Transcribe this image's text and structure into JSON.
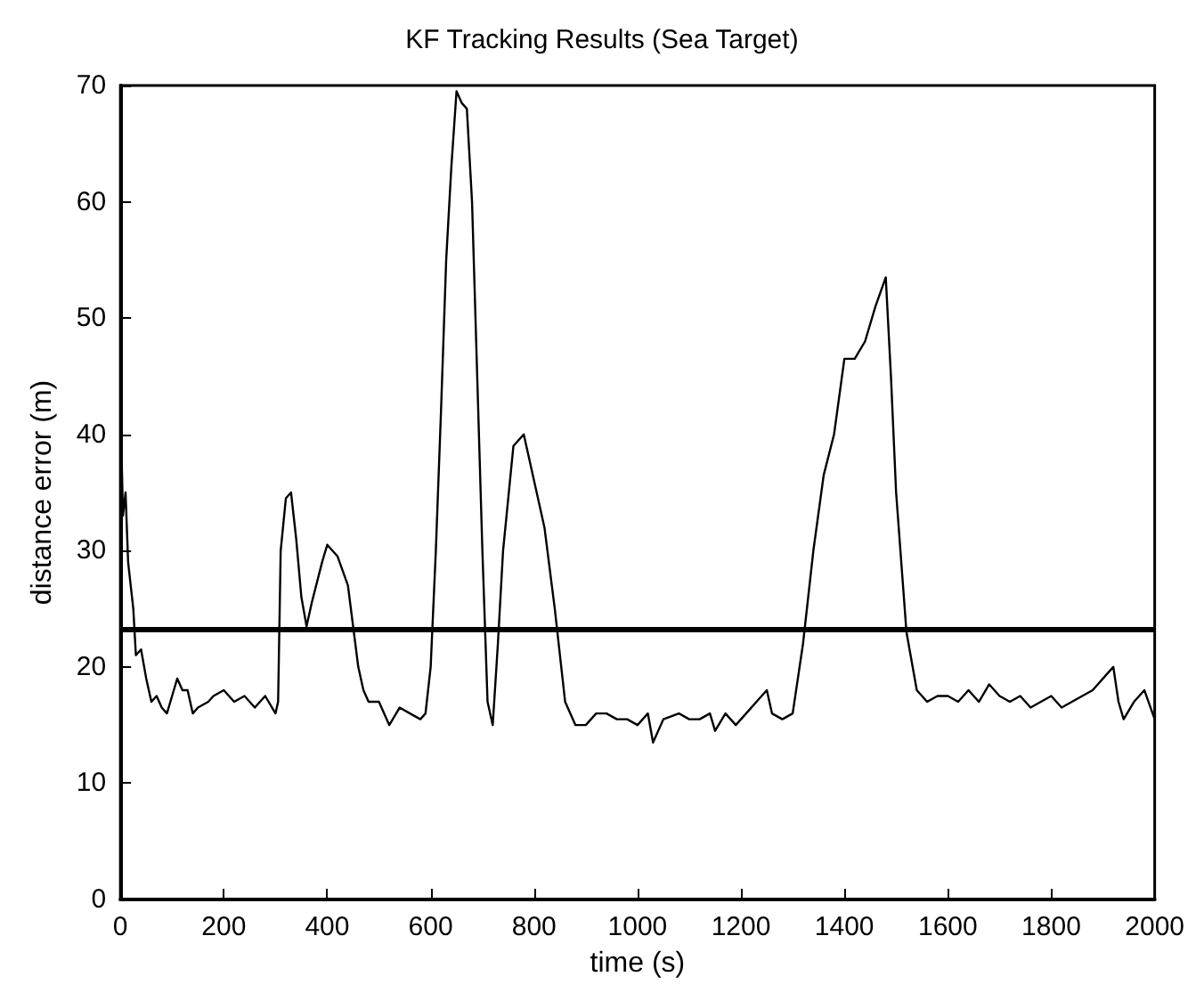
{
  "chart_data": {
    "type": "line",
    "title": "KF Tracking Results (Sea Target)",
    "xlabel": "time (s)",
    "ylabel": "distance error (m)",
    "x": [
      0,
      5,
      10,
      15,
      25,
      30,
      40,
      50,
      60,
      70,
      80,
      90,
      100,
      110,
      120,
      130,
      140,
      150,
      170,
      180,
      200,
      220,
      240,
      260,
      280,
      300,
      305,
      310,
      320,
      330,
      340,
      350,
      360,
      370,
      390,
      400,
      410,
      420,
      440,
      460,
      470,
      480,
      500,
      520,
      540,
      560,
      580,
      590,
      600,
      610,
      620,
      630,
      640,
      650,
      660,
      670,
      680,
      690,
      700,
      710,
      720,
      730,
      740,
      760,
      770,
      780,
      790,
      800,
      820,
      840,
      860,
      880,
      900,
      920,
      940,
      960,
      980,
      1000,
      1020,
      1030,
      1050,
      1080,
      1100,
      1120,
      1140,
      1150,
      1170,
      1190,
      1210,
      1230,
      1250,
      1260,
      1280,
      1300,
      1320,
      1340,
      1360,
      1380,
      1400,
      1420,
      1440,
      1460,
      1480,
      1490,
      1500,
      1520,
      1540,
      1560,
      1580,
      1600,
      1620,
      1640,
      1660,
      1680,
      1700,
      1720,
      1740,
      1760,
      1780,
      1800,
      1820,
      1840,
      1860,
      1880,
      1900,
      1920,
      1930,
      1940,
      1960,
      1980,
      2000
    ],
    "series": [
      {
        "color": "#000000",
        "values": [
          43,
          33,
          35,
          29,
          25,
          21,
          21.5,
          19,
          17,
          17.5,
          16.5,
          16,
          17.5,
          19,
          18,
          18,
          16,
          16.5,
          17,
          17.5,
          18,
          17,
          17.5,
          16.5,
          17.5,
          16,
          17,
          30,
          34.5,
          35,
          31,
          26,
          23.5,
          25.5,
          29,
          30.5,
          30,
          29.5,
          27,
          20,
          18,
          17,
          17,
          15,
          16.5,
          16,
          15.5,
          16,
          20,
          30,
          42,
          55,
          63,
          69.5,
          68.5,
          68,
          60,
          45,
          30,
          17,
          15,
          22,
          30,
          39,
          39.5,
          40,
          38,
          36,
          32,
          25,
          17,
          15,
          15,
          16,
          16,
          15.5,
          15.5,
          15,
          16,
          13.5,
          15.5,
          16,
          15.5,
          15.5,
          16,
          14.5,
          16,
          15,
          16,
          17,
          18,
          16,
          15.5,
          16,
          22,
          30,
          36.5,
          40,
          46.5,
          46.5,
          48,
          51,
          53.5,
          45,
          35,
          23,
          18,
          17,
          17.5,
          17.5,
          17,
          18,
          17,
          18.5,
          17.5,
          17,
          17.5,
          16.5,
          17,
          17.5,
          16.5,
          17,
          17.5,
          18,
          19,
          20,
          17,
          15.5,
          17,
          18,
          15.5
        ]
      }
    ],
    "ref_lines": [
      {
        "axis": "y",
        "value": 23.3,
        "color": "#000000"
      }
    ],
    "xlim": [
      0,
      2000
    ],
    "xticks": [
      0,
      200,
      400,
      600,
      800,
      1000,
      1200,
      1400,
      1600,
      1800,
      2000
    ],
    "ylim": [
      0,
      70
    ],
    "yticks": [
      0,
      10,
      20,
      30,
      40,
      50,
      60,
      70
    ],
    "grid": false,
    "marker": "none",
    "line_style": "solid"
  }
}
